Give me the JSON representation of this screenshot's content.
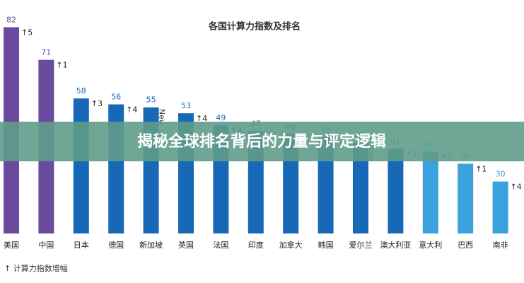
{
  "chart_data": {
    "type": "bar",
    "title": "各国计算力指数及排名",
    "categories": [
      "美国",
      "中国",
      "日本",
      "德国",
      "新加坡",
      "英国",
      "法国",
      "印度",
      "加拿大",
      "韩国",
      "爱尔兰",
      "澳大利亚",
      "意大利",
      "巴西",
      "南非"
    ],
    "values": [
      82,
      71,
      58,
      56,
      55,
      53,
      49,
      47,
      46,
      45,
      43,
      41,
      40,
      36,
      30
    ],
    "colors": [
      "#6a4a9e",
      "#6a4a9e",
      "#1769b8",
      "#1769b8",
      "#1769b8",
      "#1769b8",
      "#1769b8",
      "#1769b8",
      "#1769b8",
      "#1769b8",
      "#1769b8",
      "#1769b8",
      "#3aa2dc",
      "#3aa2dc",
      "#3aa2dc"
    ],
    "changes": [
      "↑5",
      "↑1",
      "↑3",
      "↑4",
      "New",
      "↑4",
      "↑4",
      null,
      null,
      null,
      "New",
      "↑1",
      "↑3",
      "↑1",
      "↑4"
    ],
    "ylim": [
      12.5,
      84.5
    ],
    "legend": "↑ 计算力指数增幅"
  },
  "banner": "揭秘全球排名背后的力量与评定逻辑"
}
